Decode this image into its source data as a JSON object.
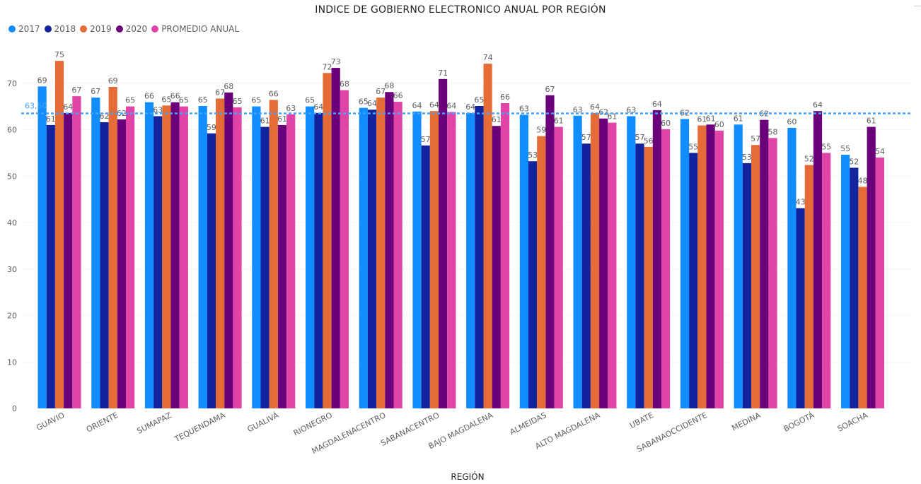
{
  "chart_data": {
    "type": "bar",
    "title": "INDICE DE GOBIERNO ELECTRONICO ANUAL POR REGIÓN",
    "xlabel": "REGIÓN",
    "ylabel": "",
    "ylim": [
      0,
      80
    ],
    "yticks": [
      "0",
      "10",
      "20",
      "30",
      "40",
      "50",
      "60",
      "70"
    ],
    "grid": true,
    "legend_position": "top-left",
    "categories": [
      "GUAVIO",
      "ORIENTE",
      "SUMAPAZ",
      "TEQUENDAMA",
      "GUALIVÁ",
      "RIONEGRO",
      "MAGDALENACENTRO",
      "SABANACENTRO",
      "BAJO MAGDALENA",
      "ALMEIDAS",
      "ALTO MAGDALENA",
      "UBATE",
      "SABANAOCCIDENTE",
      "MEDINA",
      "BOGOTÁ",
      "SOACHA"
    ],
    "series": [
      {
        "name": "2017",
        "color": "#118dff",
        "values": [
          69.3,
          66.9,
          65.9,
          65.1,
          65.0,
          65.0,
          64.7,
          63.9,
          63.6,
          63.2,
          63.0,
          62.9,
          62.3,
          61.1,
          60.4,
          54.6
        ],
        "labels": [
          "69",
          "67",
          "66",
          "65",
          "65",
          "65",
          "65",
          "64",
          "64",
          "63",
          "63",
          "63",
          "62",
          "61",
          "60",
          "55"
        ]
      },
      {
        "name": "2018",
        "color": "#12239e",
        "values": [
          61.0,
          61.6,
          62.9,
          59.2,
          60.6,
          63.6,
          64.3,
          56.6,
          65.1,
          53.2,
          57.0,
          57.0,
          55.0,
          52.8,
          43.1,
          51.8
        ],
        "labels": [
          "61",
          "62",
          "63",
          "59",
          "61",
          "64",
          "64",
          "57",
          "65",
          "53",
          "57",
          "57",
          "55",
          "53",
          "43",
          "52"
        ]
      },
      {
        "name": "2019",
        "color": "#e66c37",
        "values": [
          74.8,
          69.2,
          65.2,
          66.7,
          66.4,
          72.2,
          66.9,
          64.0,
          74.2,
          58.6,
          63.6,
          56.3,
          60.9,
          56.7,
          52.4,
          47.7
        ],
        "labels": [
          "75",
          "69",
          "65",
          "67",
          "66",
          "72",
          "67",
          "64",
          "74",
          "59",
          "64",
          "56",
          "61",
          "57",
          "52",
          "48"
        ]
      },
      {
        "name": "2020",
        "color": "#6b007b",
        "values": [
          63.6,
          62.2,
          65.9,
          68.0,
          61.0,
          73.3,
          68.1,
          70.9,
          60.8,
          67.4,
          62.4,
          64.2,
          61.1,
          62.1,
          64.0,
          60.6
        ],
        "labels": [
          "64",
          "62",
          "66",
          "68",
          "61",
          "73",
          "68",
          "71",
          "61",
          "67",
          "62",
          "64",
          "61",
          "62",
          "64",
          "61"
        ]
      },
      {
        "name": "PROMEDIO ANUAL",
        "color": "#e044a7",
        "values": [
          67.2,
          65.0,
          65.0,
          64.8,
          63.3,
          68.5,
          66.0,
          63.8,
          65.7,
          60.6,
          61.5,
          60.1,
          59.8,
          58.2,
          55.0,
          54.0
        ],
        "labels": [
          "67",
          "65",
          "65",
          "65",
          "63",
          "68",
          "66",
          "64",
          "66",
          "61",
          "61",
          "60",
          "60",
          "58",
          "55",
          "54"
        ]
      }
    ],
    "reference_line": {
      "value": 63.5,
      "label": "63,50",
      "color": "#41a4ff"
    }
  }
}
